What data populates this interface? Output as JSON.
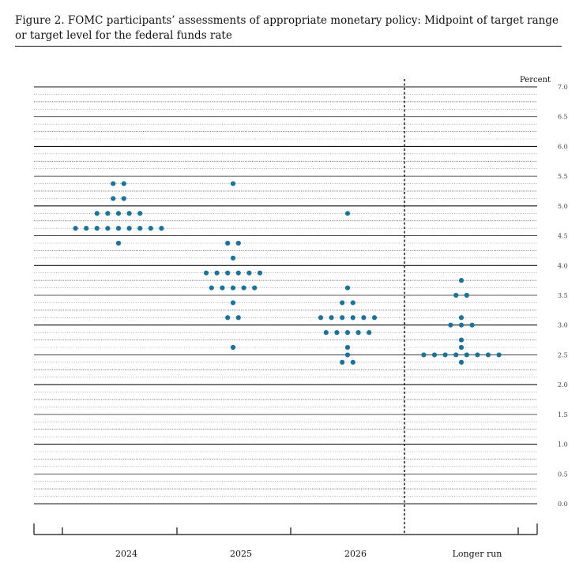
{
  "figure": {
    "title": "Figure 2.  FOMC participants’ assessments of appropriate monetary policy: Midpoint of target range or target level for the federal funds rate"
  },
  "chart_data": {
    "type": "scatter",
    "title": "",
    "ylabel": "Percent",
    "ylim": [
      0,
      7
    ],
    "yticks": [
      "0.0",
      "0.5",
      "1.0",
      "1.5",
      "2.0",
      "2.5",
      "3.0",
      "3.5",
      "4.0",
      "4.5",
      "5.0",
      "5.5",
      "6.0",
      "6.5",
      "7.0"
    ],
    "categories": [
      "2024",
      "2025",
      "2026",
      "Longer run"
    ],
    "dot_color": "#1574a0",
    "series": [
      {
        "category": "2024",
        "points": [
          {
            "y": 5.375,
            "count": 2
          },
          {
            "y": 5.125,
            "count": 2
          },
          {
            "y": 4.875,
            "count": 5
          },
          {
            "y": 4.625,
            "count": 9
          },
          {
            "y": 4.375,
            "count": 1
          }
        ]
      },
      {
        "category": "2025",
        "points": [
          {
            "y": 5.375,
            "count": 1
          },
          {
            "y": 4.375,
            "count": 2
          },
          {
            "y": 4.125,
            "count": 1
          },
          {
            "y": 3.875,
            "count": 6
          },
          {
            "y": 3.625,
            "count": 5
          },
          {
            "y": 3.375,
            "count": 1
          },
          {
            "y": 3.125,
            "count": 2
          },
          {
            "y": 2.625,
            "count": 1
          }
        ]
      },
      {
        "category": "2026",
        "points": [
          {
            "y": 4.875,
            "count": 1
          },
          {
            "y": 3.625,
            "count": 1
          },
          {
            "y": 3.375,
            "count": 2
          },
          {
            "y": 3.125,
            "count": 6
          },
          {
            "y": 2.875,
            "count": 5
          },
          {
            "y": 2.625,
            "count": 1
          },
          {
            "y": 2.5,
            "count": 1
          },
          {
            "y": 2.375,
            "count": 2
          }
        ]
      },
      {
        "category": "Longer run",
        "points": [
          {
            "y": 3.75,
            "count": 1
          },
          {
            "y": 3.5,
            "count": 2
          },
          {
            "y": 3.125,
            "count": 1
          },
          {
            "y": 3.0,
            "count": 3
          },
          {
            "y": 2.75,
            "count": 1
          },
          {
            "y": 2.625,
            "count": 1
          },
          {
            "y": 2.5,
            "count": 8
          },
          {
            "y": 2.375,
            "count": 1
          }
        ]
      }
    ]
  }
}
